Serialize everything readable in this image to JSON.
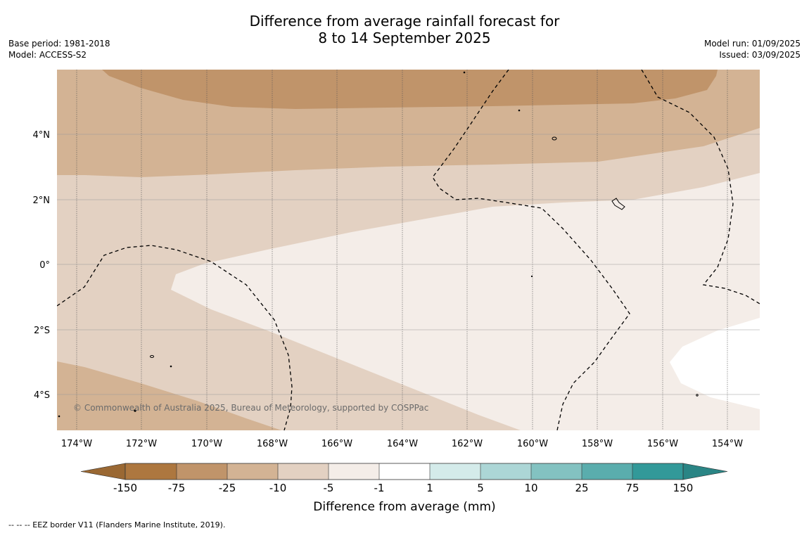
{
  "title": {
    "line1": "Difference from average rainfall forecast for",
    "line2": "8 to 14 September 2025"
  },
  "meta_left": {
    "base_period": "Base period: 1981-2018",
    "model": "Model: ACCESS-S2"
  },
  "meta_right": {
    "model_run": "Model run: 01/09/2025",
    "issued": "Issued: 03/09/2025"
  },
  "map": {
    "copyright": "© Commonwealth of Australia 2025, Bureau of Meteorology, supported by COSPPac",
    "x_ticks": [
      "174°W",
      "172°W",
      "170°W",
      "168°W",
      "166°W",
      "164°W",
      "162°W",
      "160°W",
      "158°W",
      "156°W",
      "154°W"
    ],
    "y_ticks": [
      "4°N",
      "2°N",
      "0°",
      "2°S",
      "4°S"
    ],
    "lon_range": [
      -174.6,
      -153.0
    ],
    "lat_range": [
      -5.15,
      5.9
    ]
  },
  "legend": {
    "title": "Difference from average (mm)",
    "tick_labels": [
      "-150",
      "-75",
      "-25",
      "-10",
      "-5",
      "-1",
      "1",
      "5",
      "10",
      "25",
      "75",
      "150"
    ],
    "colors": [
      "#ad773f",
      "#c0946a",
      "#d3b394",
      "#e3d1c2",
      "#f4ede8",
      "#ffffff",
      "#d4ebea",
      "#acd6d6",
      "#83c2c1",
      "#5aadad",
      "#329999"
    ],
    "extend_low_color": "#9a6833",
    "extend_high_color": "#2a8585"
  },
  "footer": {
    "eez_note": "--  --  -- EEZ border V11 (Flanders Marine Institute, 2019)."
  }
}
